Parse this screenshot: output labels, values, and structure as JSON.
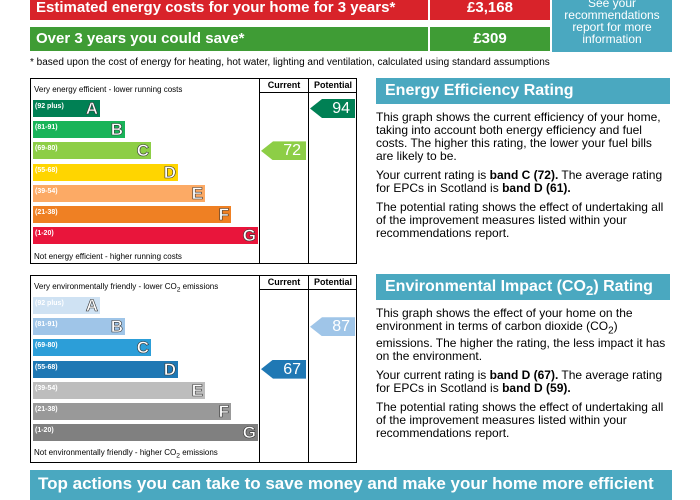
{
  "costs": {
    "row1": {
      "label": "Estimated energy costs for your home for 3 years*",
      "value": "£3,168"
    },
    "row2": {
      "label": "Over 3 years you could save*",
      "value": "£309"
    },
    "recommendations_link": [
      "See your",
      "recommendations",
      "report for more",
      "information"
    ],
    "footnote": "* based upon the cost of energy for heating, hot water, lighting and ventilation, calculated using standard assumptions"
  },
  "columns": {
    "current": "Current",
    "potential": "Potential"
  },
  "energy_chart": {
    "top_label": "Very energy efficient - lower running costs",
    "bottom_label": "Not energy efficient - higher running costs",
    "current": "72",
    "potential": "94",
    "bands": [
      {
        "range": "(92 plus)",
        "letter": "A",
        "color": "#008054"
      },
      {
        "range": "(81-91)",
        "letter": "B",
        "color": "#19b459"
      },
      {
        "range": "(69-80)",
        "letter": "C",
        "color": "#8dce46"
      },
      {
        "range": "(55-68)",
        "letter": "D",
        "color": "#ffd500"
      },
      {
        "range": "(39-54)",
        "letter": "E",
        "color": "#fcaa65"
      },
      {
        "range": "(21-38)",
        "letter": "F",
        "color": "#ef8023"
      },
      {
        "range": "(1-20)",
        "letter": "G",
        "color": "#e9153b"
      }
    ],
    "current_color": "#8dce46",
    "potential_color": "#008054"
  },
  "env_chart": {
    "top_label_pre": "Very environmentally friendly - lower CO",
    "top_label_sub": "2",
    "top_label_post": " emissions",
    "bottom_label_pre": "Not environmentally friendly - higher CO",
    "bottom_label_sub": "2",
    "bottom_label_post": " emissions",
    "current": "67",
    "potential": "87",
    "bands": [
      {
        "range": "(92 plus)",
        "letter": "A",
        "color": "#cfe2f3"
      },
      {
        "range": "(81-91)",
        "letter": "B",
        "color": "#9fc5e8"
      },
      {
        "range": "(69-80)",
        "letter": "C",
        "color": "#2c9ed8"
      },
      {
        "range": "(55-68)",
        "letter": "D",
        "color": "#1f78b4"
      },
      {
        "range": "(39-54)",
        "letter": "E",
        "color": "#bdbdbd"
      },
      {
        "range": "(21-38)",
        "letter": "F",
        "color": "#999999"
      },
      {
        "range": "(1-20)",
        "letter": "G",
        "color": "#808080"
      }
    ],
    "current_color": "#1f78b4",
    "potential_color": "#9fc5e8"
  },
  "energy_panel": {
    "title": "Energy Efficiency Rating",
    "para1": "This graph shows the current efficiency of your home, taking into account both energy efficiency and fuel costs. The higher this rating, the lower your fuel bills are likely to be.",
    "para2_pre": "Your current rating is ",
    "para2_bold1": "band C (72).",
    "para2_mid": " The average rating for EPCs in Scotland is ",
    "para2_bold2": "band D (61).",
    "para3": "The potential rating shows the effect of undertaking all of the improvement measures listed within your recommendations report."
  },
  "env_panel": {
    "title_pre": "Environmental Impact (CO",
    "title_sub": "2",
    "title_post": ") Rating",
    "para1_pre": "This graph shows the effect of your home on the environment in terms of carbon dioxide (CO",
    "para1_sub": "2",
    "para1_post": ") emissions. The higher the rating, the less impact it has on the environment.",
    "para2_pre": "Your current rating is ",
    "para2_bold1": "band D (67).",
    "para2_mid": " The average rating for EPCs in Scotland is ",
    "para2_bold2": "band D (59).",
    "para3": "The potential rating shows the effect of undertaking all of the improvement measures listed within your recommendations report."
  },
  "bottom_banner": "Top actions you can take to save money and make your home more efficient"
}
